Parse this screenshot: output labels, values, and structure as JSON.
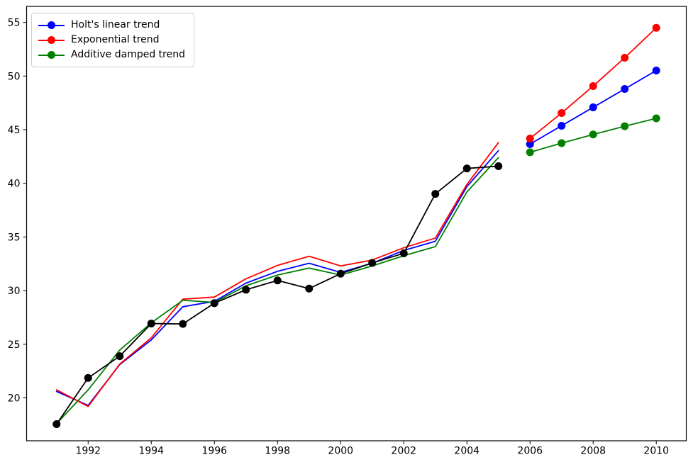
{
  "chart_data": {
    "type": "line",
    "title": "",
    "xlabel": "",
    "ylabel": "",
    "xlim": [
      1990.05,
      2010.95
    ],
    "ylim": [
      16.0,
      56.5
    ],
    "x_ticks": [
      1992,
      1994,
      1996,
      1998,
      2000,
      2002,
      2004,
      2006,
      2008,
      2010
    ],
    "y_ticks": [
      20,
      25,
      30,
      35,
      40,
      45,
      50,
      55
    ],
    "grid": false,
    "background": "#ffffff",
    "frame_color": "#000000",
    "legend": {
      "position": "upper-left",
      "items": [
        {
          "label": "Holt's linear trend",
          "color": "#0000ff"
        },
        {
          "label": "Exponential trend",
          "color": "#ff0000"
        },
        {
          "label": "Additive damped trend",
          "color": "#008000"
        }
      ]
    },
    "series": [
      {
        "name": "holt-linear-fitted",
        "color": "#0000ff",
        "marker": false,
        "x": [
          1991,
          1992,
          1993,
          1994,
          1995,
          1996,
          1997,
          1998,
          1999,
          2000,
          2001,
          2002,
          2003,
          2004,
          2005
        ],
        "y": [
          20.6,
          19.3,
          23.1,
          25.4,
          28.5,
          29.0,
          30.7,
          31.8,
          32.55,
          31.7,
          32.55,
          33.75,
          34.6,
          39.7,
          43.05
        ]
      },
      {
        "name": "holt-linear-forecast",
        "color": "#0000ff",
        "marker": true,
        "x": [
          2006,
          2007,
          2008,
          2009,
          2010
        ],
        "y": [
          43.66,
          45.37,
          47.09,
          48.8,
          50.52
        ]
      },
      {
        "name": "exponential-fitted",
        "color": "#ff0000",
        "marker": false,
        "x": [
          1991,
          1992,
          1993,
          1994,
          1995,
          1996,
          1997,
          1998,
          1999,
          2000,
          2001,
          2002,
          2003,
          2004,
          2005
        ],
        "y": [
          20.75,
          19.2,
          23.15,
          25.6,
          29.2,
          29.4,
          31.1,
          32.35,
          33.2,
          32.3,
          32.85,
          34.0,
          34.9,
          39.9,
          43.8
        ]
      },
      {
        "name": "exponential-forecast",
        "color": "#ff0000",
        "marker": true,
        "x": [
          2006,
          2007,
          2008,
          2009,
          2010
        ],
        "y": [
          44.18,
          46.56,
          49.07,
          51.71,
          54.5
        ]
      },
      {
        "name": "additive-damped-fitted",
        "color": "#008000",
        "marker": false,
        "x": [
          1991,
          1992,
          1993,
          1994,
          1995,
          1996,
          1997,
          1998,
          1999,
          2000,
          2001,
          2002,
          2003,
          2004,
          2005
        ],
        "y": [
          17.6,
          20.75,
          24.45,
          27.0,
          29.1,
          28.9,
          30.45,
          31.45,
          32.1,
          31.45,
          32.3,
          33.25,
          34.1,
          39.2,
          42.4
        ]
      },
      {
        "name": "additive-damped-forecast",
        "color": "#008000",
        "marker": true,
        "x": [
          2006,
          2007,
          2008,
          2009,
          2010
        ],
        "y": [
          42.9,
          43.75,
          44.56,
          45.33,
          46.06
        ]
      },
      {
        "name": "observed",
        "color": "#000000",
        "marker": true,
        "x": [
          1991,
          1992,
          1993,
          1994,
          1995,
          1996,
          1997,
          1998,
          1999,
          2000,
          2001,
          2002,
          2003,
          2004,
          2005
        ],
        "y": [
          17.55,
          21.86,
          23.89,
          26.93,
          26.89,
          28.83,
          30.08,
          30.95,
          30.19,
          31.58,
          32.58,
          33.48,
          39.02,
          41.39,
          41.6
        ]
      }
    ]
  }
}
